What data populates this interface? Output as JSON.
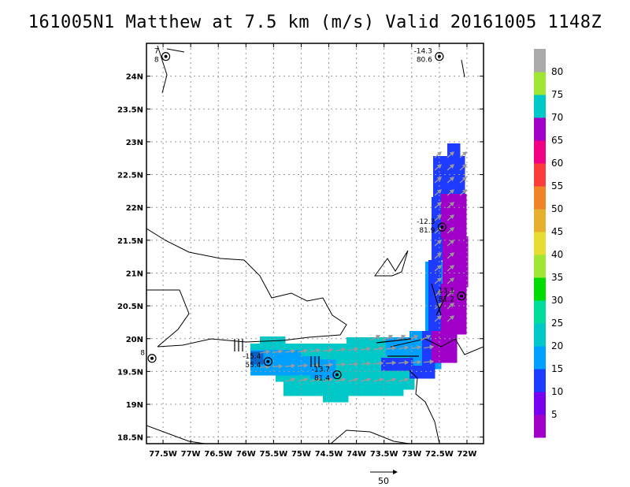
{
  "title": "161005N1 Matthew at 7.5 km (m/s) Valid 20161005 1148Z",
  "chart_data": {
    "type": "heatmap",
    "subtype": "wind-speed map with vectors",
    "title": "161005N1 Matthew at 7.5 km (m/s) Valid 20161005 1148Z",
    "xlim": [
      -77.8,
      -71.7
    ],
    "ylim": [
      18.4,
      24.5
    ],
    "x_ticks": [
      {
        "v": -77.5,
        "label": "77.5W"
      },
      {
        "v": -77,
        "label": "77W"
      },
      {
        "v": -76.5,
        "label": "76.5W"
      },
      {
        "v": -76,
        "label": "76W"
      },
      {
        "v": -75.5,
        "label": "75.5W"
      },
      {
        "v": -75,
        "label": "75W"
      },
      {
        "v": -74.5,
        "label": "74.5W"
      },
      {
        "v": -74,
        "label": "74W"
      },
      {
        "v": -73.5,
        "label": "73.5W"
      },
      {
        "v": -73,
        "label": "73W"
      },
      {
        "v": -72.5,
        "label": "72.5W"
      },
      {
        "v": -72,
        "label": "72W"
      }
    ],
    "y_ticks": [
      {
        "v": 18.5,
        "label": "18.5N"
      },
      {
        "v": 19,
        "label": "19N"
      },
      {
        "v": 19.5,
        "label": "19.5N"
      },
      {
        "v": 20,
        "label": "20N"
      },
      {
        "v": 20.5,
        "label": "20.5N"
      },
      {
        "v": 21,
        "label": "21N"
      },
      {
        "v": 21.5,
        "label": "21.5N"
      },
      {
        "v": 22,
        "label": "22N"
      },
      {
        "v": 22.5,
        "label": "22.5N"
      },
      {
        "v": 23,
        "label": "23N"
      },
      {
        "v": 23.5,
        "label": "23.5N"
      },
      {
        "v": 24,
        "label": "24N"
      }
    ],
    "grid": true,
    "colorbar": {
      "placement": "right",
      "labels": [
        "5",
        "10",
        "15",
        "20",
        "25",
        "30",
        "35",
        "40",
        "45",
        "50",
        "55",
        "60",
        "65",
        "70",
        "75",
        "80"
      ],
      "colors": [
        "#a000c8",
        "#7700ee",
        "#1e3cff",
        "#00a0ff",
        "#00c8c8",
        "#00dc9c",
        "#00dc00",
        "#a0e632",
        "#e6dc32",
        "#e6af2d",
        "#f08228",
        "#fa3c3c",
        "#f00082",
        "#a000c8",
        "#00c8c8",
        "#a0e632",
        "#aaaaaa"
      ]
    },
    "centers": [
      {
        "lon": -77.45,
        "lat": 24.3,
        "label1": "7",
        "label2": "8"
      },
      {
        "lon": -72.5,
        "lat": 24.3,
        "label1": "-14.3",
        "label2": "80.6"
      },
      {
        "lon": -72.45,
        "lat": 21.7,
        "label1": "-12.3",
        "label2": "81.9"
      },
      {
        "lon": -72.1,
        "lat": 20.65,
        "label1": "-13.1",
        "label2": "81.2"
      },
      {
        "lon": -77.7,
        "lat": 19.7,
        "label1": "8",
        "label2": ""
      },
      {
        "lon": -75.6,
        "lat": 19.65,
        "label1": "-15.4",
        "label2": "55.4"
      },
      {
        "lon": -74.35,
        "lat": 19.45,
        "label1": "-13.7",
        "label2": "81.4"
      }
    ],
    "vector_scale_label": "50"
  }
}
